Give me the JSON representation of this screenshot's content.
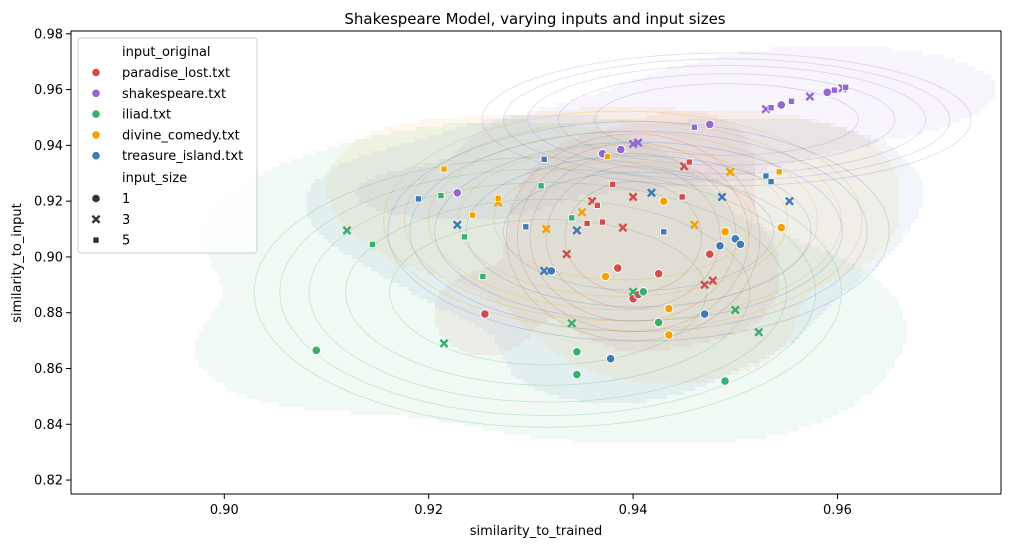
{
  "chart_data": {
    "type": "scatter",
    "title": "Shakespeare Model, varying inputs and input sizes",
    "xlabel": "similarity_to_trained",
    "ylabel": "similarity_to_input",
    "xlim": [
      0.885,
      0.976
    ],
    "ylim": [
      0.815,
      0.981
    ],
    "xticks": [
      0.9,
      0.92,
      0.94,
      0.96
    ],
    "yticks": [
      0.82,
      0.84,
      0.86,
      0.88,
      0.9,
      0.92,
      0.94,
      0.96,
      0.98
    ],
    "grid": false,
    "legend": {
      "placement": "upper-left",
      "hue_title": "input_original",
      "size_title": "input_size",
      "hue_entries": [
        "paradise_lost.txt",
        "shakespeare.txt",
        "iliad.txt",
        "divine_comedy.txt",
        "treasure_island.txt"
      ],
      "marker_entries": [
        "1",
        "3",
        "5"
      ]
    },
    "series": [
      {
        "name": "paradise_lost.txt",
        "color": "#d64a4b",
        "points": [
          {
            "x": 0.9255,
            "y": 0.8795,
            "size": 1
          },
          {
            "x": 0.9385,
            "y": 0.896,
            "size": 1
          },
          {
            "x": 0.9425,
            "y": 0.894,
            "size": 1
          },
          {
            "x": 0.94,
            "y": 0.885,
            "size": 1
          },
          {
            "x": 0.9405,
            "y": 0.8865,
            "size": 1
          },
          {
            "x": 0.9475,
            "y": 0.901,
            "size": 1
          },
          {
            "x": 0.9335,
            "y": 0.901,
            "size": 3
          },
          {
            "x": 0.936,
            "y": 0.92,
            "size": 3
          },
          {
            "x": 0.939,
            "y": 0.9105,
            "size": 3
          },
          {
            "x": 0.94,
            "y": 0.9215,
            "size": 3
          },
          {
            "x": 0.945,
            "y": 0.9325,
            "size": 3
          },
          {
            "x": 0.947,
            "y": 0.89,
            "size": 3
          },
          {
            "x": 0.9478,
            "y": 0.8915,
            "size": 3
          },
          {
            "x": 0.9355,
            "y": 0.912,
            "size": 5
          },
          {
            "x": 0.9365,
            "y": 0.9185,
            "size": 5
          },
          {
            "x": 0.937,
            "y": 0.9125,
            "size": 5
          },
          {
            "x": 0.938,
            "y": 0.926,
            "size": 5
          },
          {
            "x": 0.9448,
            "y": 0.9215,
            "size": 5
          },
          {
            "x": 0.9455,
            "y": 0.934,
            "size": 5
          }
        ]
      },
      {
        "name": "shakespeare.txt",
        "color": "#9467d2",
        "points": [
          {
            "x": 0.9228,
            "y": 0.923,
            "size": 1
          },
          {
            "x": 0.937,
            "y": 0.937,
            "size": 1
          },
          {
            "x": 0.9388,
            "y": 0.9385,
            "size": 1
          },
          {
            "x": 0.9475,
            "y": 0.9475,
            "size": 1
          },
          {
            "x": 0.9545,
            "y": 0.9545,
            "size": 1
          },
          {
            "x": 0.959,
            "y": 0.959,
            "size": 1
          },
          {
            "x": 0.94,
            "y": 0.9405,
            "size": 3
          },
          {
            "x": 0.9405,
            "y": 0.941,
            "size": 3
          },
          {
            "x": 0.953,
            "y": 0.953,
            "size": 3
          },
          {
            "x": 0.9573,
            "y": 0.9575,
            "size": 3
          },
          {
            "x": 0.9605,
            "y": 0.9605,
            "size": 3
          },
          {
            "x": 0.946,
            "y": 0.9465,
            "size": 5
          },
          {
            "x": 0.9535,
            "y": 0.9535,
            "size": 5
          },
          {
            "x": 0.9555,
            "y": 0.9558,
            "size": 5
          },
          {
            "x": 0.9597,
            "y": 0.9598,
            "size": 5
          },
          {
            "x": 0.9608,
            "y": 0.9608,
            "size": 5
          }
        ]
      },
      {
        "name": "iliad.txt",
        "color": "#3aae6e",
        "points": [
          {
            "x": 0.909,
            "y": 0.8665,
            "size": 1
          },
          {
            "x": 0.9345,
            "y": 0.866,
            "size": 1
          },
          {
            "x": 0.9345,
            "y": 0.8578,
            "size": 1
          },
          {
            "x": 0.941,
            "y": 0.8875,
            "size": 1
          },
          {
            "x": 0.9425,
            "y": 0.8765,
            "size": 1
          },
          {
            "x": 0.949,
            "y": 0.8555,
            "size": 1
          },
          {
            "x": 0.912,
            "y": 0.9095,
            "size": 3
          },
          {
            "x": 0.9215,
            "y": 0.869,
            "size": 3
          },
          {
            "x": 0.934,
            "y": 0.8762,
            "size": 3
          },
          {
            "x": 0.94,
            "y": 0.8875,
            "size": 3
          },
          {
            "x": 0.95,
            "y": 0.881,
            "size": 3
          },
          {
            "x": 0.9523,
            "y": 0.873,
            "size": 3
          },
          {
            "x": 0.9145,
            "y": 0.9045,
            "size": 5
          },
          {
            "x": 0.9212,
            "y": 0.922,
            "size": 5
          },
          {
            "x": 0.9235,
            "y": 0.9072,
            "size": 5
          },
          {
            "x": 0.9253,
            "y": 0.893,
            "size": 5
          },
          {
            "x": 0.931,
            "y": 0.9255,
            "size": 5
          },
          {
            "x": 0.934,
            "y": 0.914,
            "size": 5
          }
        ]
      },
      {
        "name": "divine_comedy.txt",
        "color": "#f5a200",
        "points": [
          {
            "x": 0.9373,
            "y": 0.893,
            "size": 1
          },
          {
            "x": 0.943,
            "y": 0.92,
            "size": 1
          },
          {
            "x": 0.9435,
            "y": 0.8815,
            "size": 1
          },
          {
            "x": 0.9435,
            "y": 0.872,
            "size": 1
          },
          {
            "x": 0.949,
            "y": 0.909,
            "size": 1
          },
          {
            "x": 0.9545,
            "y": 0.9105,
            "size": 1
          },
          {
            "x": 0.9268,
            "y": 0.9195,
            "size": 3
          },
          {
            "x": 0.9315,
            "y": 0.91,
            "size": 3
          },
          {
            "x": 0.935,
            "y": 0.916,
            "size": 3
          },
          {
            "x": 0.946,
            "y": 0.9115,
            "size": 3
          },
          {
            "x": 0.9495,
            "y": 0.9305,
            "size": 3
          },
          {
            "x": 0.9215,
            "y": 0.9315,
            "size": 5
          },
          {
            "x": 0.9243,
            "y": 0.915,
            "size": 5
          },
          {
            "x": 0.9268,
            "y": 0.921,
            "size": 5
          },
          {
            "x": 0.9375,
            "y": 0.936,
            "size": 5
          },
          {
            "x": 0.9543,
            "y": 0.9305,
            "size": 5
          }
        ]
      },
      {
        "name": "treasure_island.txt",
        "color": "#3f7ab8",
        "points": [
          {
            "x": 0.932,
            "y": 0.895,
            "size": 1
          },
          {
            "x": 0.9378,
            "y": 0.8635,
            "size": 1
          },
          {
            "x": 0.947,
            "y": 0.8795,
            "size": 1
          },
          {
            "x": 0.9485,
            "y": 0.904,
            "size": 1
          },
          {
            "x": 0.95,
            "y": 0.9065,
            "size": 1
          },
          {
            "x": 0.9505,
            "y": 0.9045,
            "size": 1
          },
          {
            "x": 0.9228,
            "y": 0.9115,
            "size": 3
          },
          {
            "x": 0.9313,
            "y": 0.895,
            "size": 3
          },
          {
            "x": 0.9345,
            "y": 0.9095,
            "size": 3
          },
          {
            "x": 0.9418,
            "y": 0.923,
            "size": 3
          },
          {
            "x": 0.9487,
            "y": 0.9215,
            "size": 3
          },
          {
            "x": 0.9553,
            "y": 0.92,
            "size": 3
          },
          {
            "x": 0.919,
            "y": 0.9208,
            "size": 5
          },
          {
            "x": 0.9295,
            "y": 0.9108,
            "size": 5
          },
          {
            "x": 0.9313,
            "y": 0.935,
            "size": 5
          },
          {
            "x": 0.943,
            "y": 0.909,
            "size": 5
          },
          {
            "x": 0.953,
            "y": 0.929,
            "size": 5
          },
          {
            "x": 0.9535,
            "y": 0.927,
            "size": 5
          }
        ]
      }
    ]
  }
}
